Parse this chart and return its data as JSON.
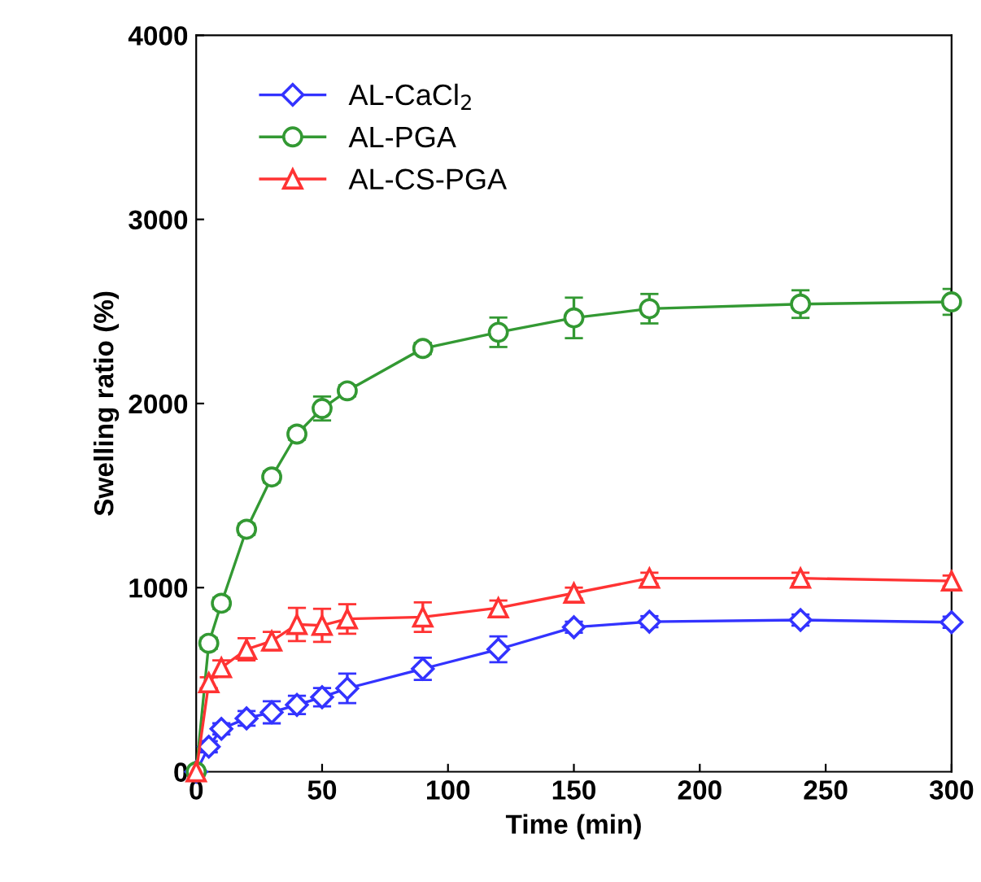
{
  "chart_data": {
    "type": "line",
    "xlabel": "Time (min)",
    "ylabel": "Swelling ratio (%)",
    "x": [
      0,
      5,
      10,
      20,
      30,
      40,
      50,
      60,
      90,
      120,
      150,
      180,
      240,
      300
    ],
    "xlim": [
      0,
      300
    ],
    "xticks": [
      0,
      50,
      100,
      150,
      200,
      250,
      300
    ],
    "ylim": [
      0,
      4000
    ],
    "yticks": [
      0,
      1000,
      2000,
      3000,
      4000
    ],
    "grid": false,
    "legend": "top left",
    "series": [
      {
        "name": "AL-CaCl$_{2}$",
        "color": "#3333ff",
        "marker": "diamond",
        "values": [
          0,
          136,
          233,
          290,
          323,
          363,
          405,
          453,
          559,
          665,
          785,
          815,
          824,
          812
        ],
        "errors": [
          null,
          30,
          30,
          40,
          60,
          50,
          50,
          80,
          60,
          70,
          30,
          30,
          30,
          30
        ]
      },
      {
        "name": "AL-PGA",
        "color": "#339933",
        "marker": "circle",
        "values": [
          0,
          698,
          915,
          1317,
          1601,
          1834,
          1973,
          2069,
          2299,
          2387,
          2465,
          2515,
          2540,
          2552
        ],
        "errors": [
          null,
          30,
          30,
          30,
          30,
          30,
          65,
          30,
          30,
          80,
          110,
          80,
          75,
          70
        ]
      },
      {
        "name": "AL-CS-PGA",
        "color": "#ff3333",
        "marker": "triangle",
        "values": [
          0,
          483,
          565,
          665,
          710,
          800,
          795,
          830,
          840,
          890,
          970,
          1051,
          1051,
          1036
        ],
        "errors": [
          null,
          30,
          40,
          60,
          50,
          90,
          90,
          80,
          80,
          40,
          30,
          30,
          30,
          30
        ]
      }
    ]
  }
}
